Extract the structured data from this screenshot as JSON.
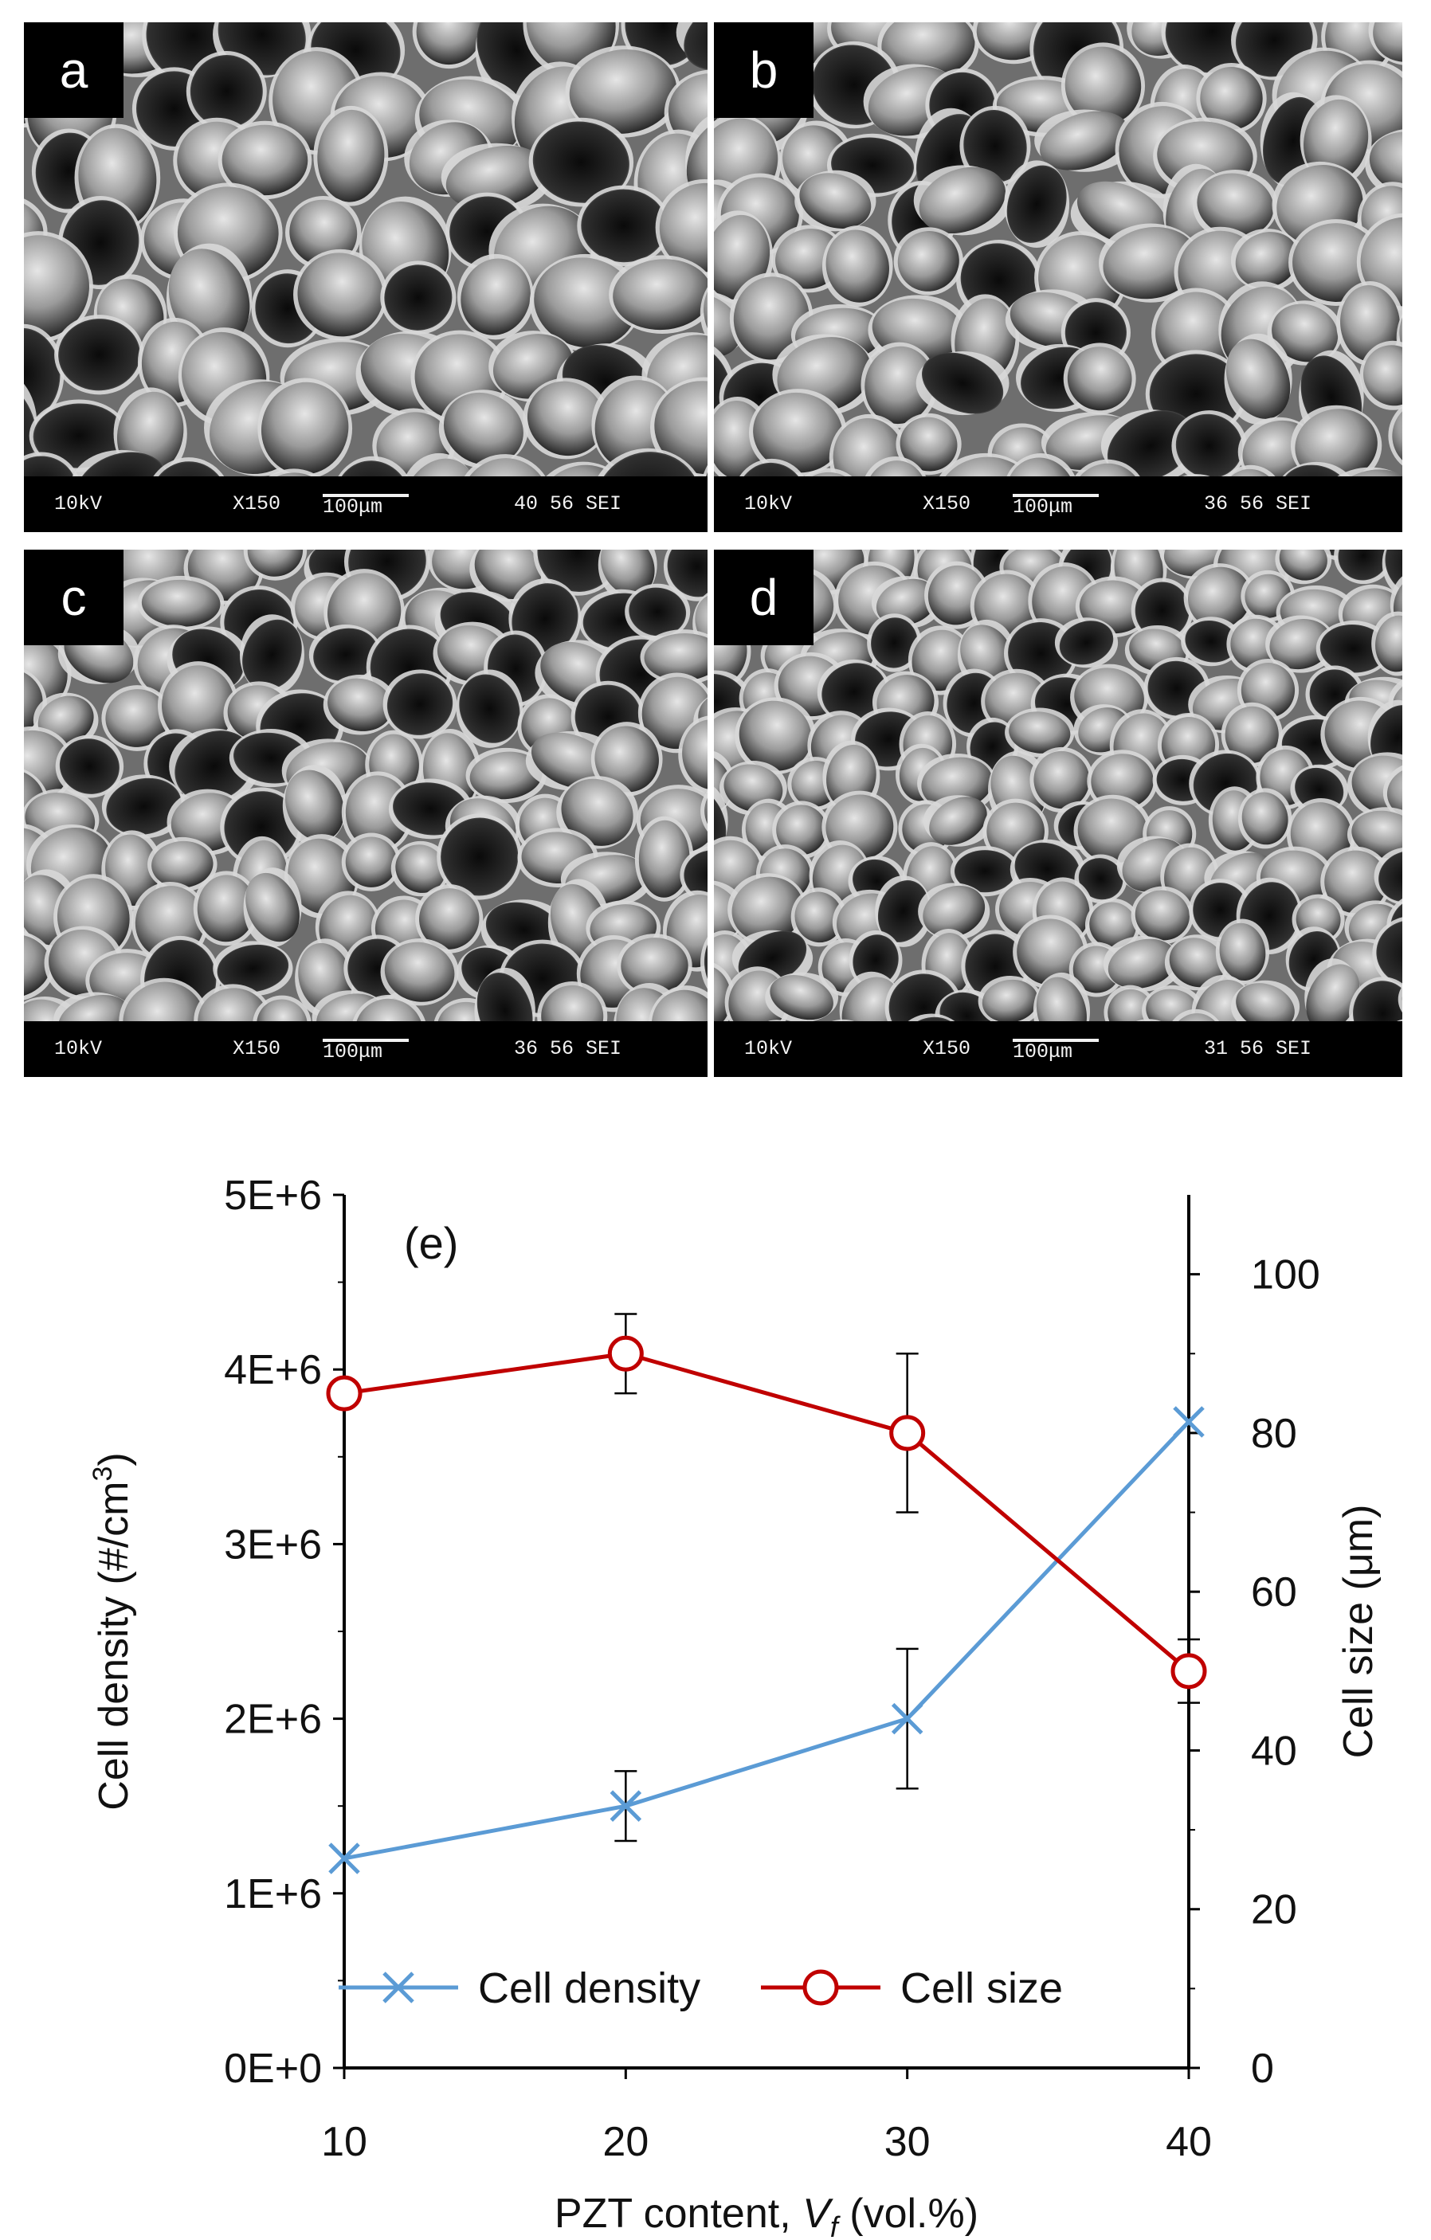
{
  "panels": [
    {
      "id": "a",
      "label": "a",
      "info": {
        "kv": "10kV",
        "mag": "X150",
        "scale": "100μm",
        "code": "40 56 SEI"
      }
    },
    {
      "id": "b",
      "label": "b",
      "info": {
        "kv": "10kV",
        "mag": "X150",
        "scale": "100μm",
        "code": "36 56 SEI"
      }
    },
    {
      "id": "c",
      "label": "c",
      "info": {
        "kv": "10kV",
        "mag": "X150",
        "scale": "100μm",
        "code": "36 56 SEI"
      }
    },
    {
      "id": "d",
      "label": "d",
      "info": {
        "kv": "10kV",
        "mag": "X150",
        "scale": "100μm",
        "code": "31 56 SEI"
      }
    }
  ],
  "chart_data": {
    "type": "line",
    "panel_label": "(e)",
    "xlabel_prefix": "PZT content, ",
    "xlabel_var": "V",
    "xlabel_sub": "f",
    "xlabel_suffix": " (vol.%)",
    "ylabel_left": "Cell density (#/cm",
    "ylabel_left_sup": "3",
    "ylabel_left_close": ")",
    "ylabel_right": "Cell size (μm)",
    "x": [
      10,
      20,
      30,
      40
    ],
    "xlim": [
      10,
      40
    ],
    "ylim_left": [
      0,
      5000000
    ],
    "ylim_right": [
      0,
      110
    ],
    "left_ticks": [
      "0E+0",
      "1E+6",
      "2E+6",
      "3E+6",
      "4E+6",
      "5E+6"
    ],
    "left_tick_values": [
      0,
      1000000,
      2000000,
      3000000,
      4000000,
      5000000
    ],
    "right_ticks": [
      "0",
      "20",
      "40",
      "60",
      "80",
      "100"
    ],
    "right_tick_values": [
      0,
      20,
      40,
      60,
      80,
      100
    ],
    "x_ticks": [
      "10",
      "20",
      "30",
      "40"
    ],
    "legend_position": "bottom",
    "series": [
      {
        "name": "Cell density",
        "axis": "left",
        "color": "#5b9bd5",
        "marker": "x",
        "values": [
          1200000,
          1500000,
          2000000,
          3700000
        ],
        "err_low": [
          null,
          1300000,
          1600000,
          null
        ],
        "err_high": [
          null,
          1700000,
          2400000,
          null
        ]
      },
      {
        "name": "Cell size",
        "axis": "right",
        "color": "#c00000",
        "marker": "circle",
        "values": [
          85,
          90,
          80,
          50
        ],
        "err_low": [
          null,
          85,
          70,
          46
        ],
        "err_high": [
          null,
          95,
          90,
          54
        ]
      }
    ]
  }
}
